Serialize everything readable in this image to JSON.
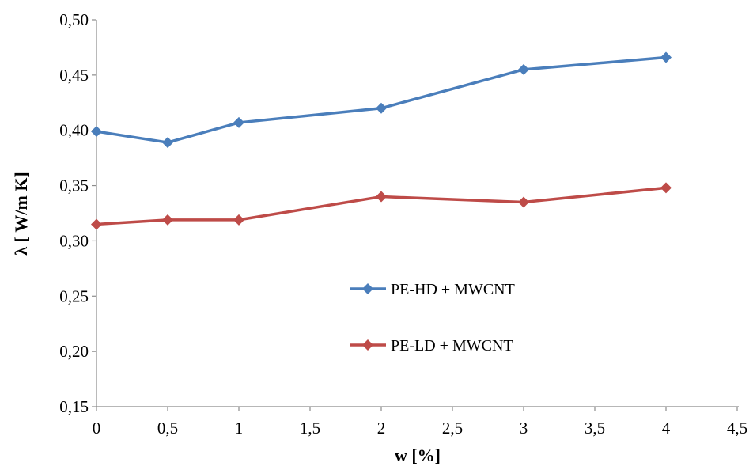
{
  "chart_data": {
    "type": "line",
    "xlabel": "w [%]",
    "ylabel": "λ [ W/m K]",
    "xlim": [
      0,
      4.5
    ],
    "ylim": [
      0.15,
      0.5
    ],
    "x_ticks": [
      "0",
      "0,5",
      "1",
      "1,5",
      "2",
      "2,5",
      "3",
      "3,5",
      "4",
      "4,5"
    ],
    "y_ticks": [
      "0,15",
      "0,20",
      "0,25",
      "0,30",
      "0,35",
      "0,40",
      "0,45",
      "0,50"
    ],
    "grid": false,
    "legend_position": "center",
    "marker": "diamond",
    "series": [
      {
        "name": "PE-HD + MWCNT",
        "color": "#4a7ebb",
        "x": [
          0,
          0.5,
          1,
          2,
          3,
          4
        ],
        "values": [
          0.399,
          0.389,
          0.407,
          0.42,
          0.455,
          0.466
        ]
      },
      {
        "name": "PE-LD + MWCNT",
        "color": "#be4b48",
        "x": [
          0,
          0.5,
          1,
          2,
          3,
          4
        ],
        "values": [
          0.315,
          0.319,
          0.319,
          0.34,
          0.335,
          0.348
        ]
      }
    ]
  }
}
